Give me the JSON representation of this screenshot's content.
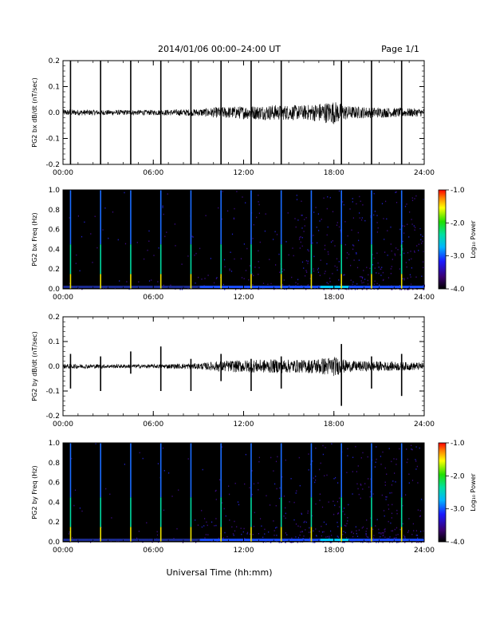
{
  "header": {
    "title": "2014/01/06  00:00–24:00 UT",
    "page": "Page 1/1"
  },
  "footer": {
    "xlabel": "Universal Time (hh:mm)"
  },
  "colorbar": {
    "label": "Log₁₀ Power",
    "ticks": [
      "-1.0",
      "-2.0",
      "-3.0",
      "-4.0"
    ],
    "range": [
      -4.0,
      -1.0
    ]
  },
  "chart_data": [
    {
      "type": "line",
      "ylabel": "PG2 bx dB/dt (nT/sec)",
      "xlim": [
        0,
        24
      ],
      "ylim": [
        -0.2,
        0.2
      ],
      "x_ticks": [
        "00:00",
        "06:00",
        "12:00",
        "18:00",
        "24:00"
      ],
      "y_ticks": [
        "0.2",
        "0.1",
        "0.0",
        "-0.1",
        "-0.2"
      ],
      "baseline": 0.0,
      "noise_envelope": [
        {
          "x": 0,
          "amp": 0.012
        },
        {
          "x": 3,
          "amp": 0.01
        },
        {
          "x": 6,
          "amp": 0.01
        },
        {
          "x": 9,
          "amp": 0.014
        },
        {
          "x": 10.5,
          "amp": 0.022
        },
        {
          "x": 12,
          "amp": 0.025
        },
        {
          "x": 14,
          "amp": 0.03
        },
        {
          "x": 16,
          "amp": 0.028
        },
        {
          "x": 18,
          "amp": 0.045
        },
        {
          "x": 19,
          "amp": 0.025
        },
        {
          "x": 21,
          "amp": 0.02
        },
        {
          "x": 24,
          "amp": 0.015
        }
      ],
      "spikes": [
        {
          "x": 0.5,
          "min": -0.2,
          "max": 0.2
        },
        {
          "x": 2.5,
          "min": -0.2,
          "max": 0.2
        },
        {
          "x": 4.5,
          "min": -0.2,
          "max": 0.2
        },
        {
          "x": 6.5,
          "min": -0.2,
          "max": 0.2
        },
        {
          "x": 8.5,
          "min": -0.2,
          "max": 0.2
        },
        {
          "x": 10.5,
          "min": -0.2,
          "max": 0.2
        },
        {
          "x": 12.5,
          "min": -0.2,
          "max": 0.2
        },
        {
          "x": 14.5,
          "min": -0.2,
          "max": 0.2
        },
        {
          "x": 18.5,
          "min": -0.2,
          "max": 0.2
        },
        {
          "x": 20.5,
          "min": -0.2,
          "max": 0.2
        },
        {
          "x": 22.5,
          "min": -0.2,
          "max": 0.2
        }
      ]
    },
    {
      "type": "heatmap",
      "ylabel": "PG2 bx Freq (Hz)",
      "xlim": [
        0,
        24
      ],
      "ylim": [
        0.0,
        1.0
      ],
      "x_ticks": [
        "00:00",
        "06:00",
        "12:00",
        "18:00",
        "24:00"
      ],
      "y_ticks": [
        "1.0",
        "0.8",
        "0.6",
        "0.4",
        "0.2",
        "0.0"
      ],
      "vertical_lines": [
        0.5,
        2.5,
        4.5,
        6.5,
        8.5,
        10.5,
        12.5,
        14.5,
        16.5,
        18.5,
        20.5,
        22.5
      ],
      "background_level": -4.0,
      "low_freq_level": -3.2
    },
    {
      "type": "line",
      "ylabel": "PG2 by dB/dt (nT/sec)",
      "xlim": [
        0,
        24
      ],
      "ylim": [
        -0.2,
        0.2
      ],
      "x_ticks": [
        "00:00",
        "06:00",
        "12:00",
        "18:00",
        "24:00"
      ],
      "y_ticks": [
        "0.2",
        "0.1",
        "0.0",
        "-0.1",
        "-0.2"
      ],
      "baseline": 0.0,
      "noise_envelope": [
        {
          "x": 0,
          "amp": 0.01
        },
        {
          "x": 3,
          "amp": 0.008
        },
        {
          "x": 6,
          "amp": 0.008
        },
        {
          "x": 9,
          "amp": 0.012
        },
        {
          "x": 10.5,
          "amp": 0.022
        },
        {
          "x": 12,
          "amp": 0.025
        },
        {
          "x": 14,
          "amp": 0.028
        },
        {
          "x": 16,
          "amp": 0.026
        },
        {
          "x": 18,
          "amp": 0.04
        },
        {
          "x": 19,
          "amp": 0.022
        },
        {
          "x": 21,
          "amp": 0.02
        },
        {
          "x": 24,
          "amp": 0.015
        }
      ],
      "spikes": [
        {
          "x": 0.5,
          "min": -0.09,
          "max": 0.05
        },
        {
          "x": 2.5,
          "min": -0.1,
          "max": 0.04
        },
        {
          "x": 4.5,
          "min": -0.03,
          "max": 0.06
        },
        {
          "x": 6.5,
          "min": -0.1,
          "max": 0.08
        },
        {
          "x": 8.5,
          "min": -0.1,
          "max": 0.03
        },
        {
          "x": 10.5,
          "min": -0.06,
          "max": 0.05
        },
        {
          "x": 12.5,
          "min": -0.1,
          "max": 0.03
        },
        {
          "x": 14.5,
          "min": -0.09,
          "max": 0.04
        },
        {
          "x": 18.5,
          "min": -0.16,
          "max": 0.09
        },
        {
          "x": 20.5,
          "min": -0.09,
          "max": 0.04
        },
        {
          "x": 22.5,
          "min": -0.12,
          "max": 0.05
        }
      ]
    },
    {
      "type": "heatmap",
      "ylabel": "PG2 by Freq (Hz)",
      "xlim": [
        0,
        24
      ],
      "ylim": [
        0.0,
        1.0
      ],
      "x_ticks": [
        "00:00",
        "06:00",
        "12:00",
        "18:00",
        "24:00"
      ],
      "y_ticks": [
        "1.0",
        "0.8",
        "0.6",
        "0.4",
        "0.2",
        "0.0"
      ],
      "vertical_lines": [
        0.5,
        2.5,
        4.5,
        6.5,
        8.5,
        10.5,
        12.5,
        14.5,
        16.5,
        18.5,
        20.5,
        22.5
      ],
      "background_level": -4.0,
      "low_freq_level": -3.2
    }
  ]
}
